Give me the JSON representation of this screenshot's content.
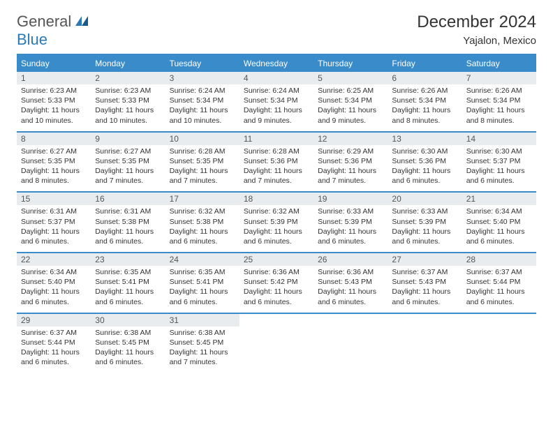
{
  "logo": {
    "general": "General",
    "blue": "Blue"
  },
  "title": "December 2024",
  "location": "Yajalon, Mexico",
  "colors": {
    "header_bg": "#3a8bc9",
    "daynum_bg": "#e9ecef",
    "text": "#333333",
    "logo_blue": "#2a7ab8"
  },
  "dow": [
    "Sunday",
    "Monday",
    "Tuesday",
    "Wednesday",
    "Thursday",
    "Friday",
    "Saturday"
  ],
  "labels": {
    "sunrise": "Sunrise: ",
    "sunset": "Sunset: ",
    "daylight": "Daylight: "
  },
  "weeks": [
    [
      {
        "n": "1",
        "sr": "6:23 AM",
        "ss": "5:33 PM",
        "dl": "11 hours and 10 minutes."
      },
      {
        "n": "2",
        "sr": "6:23 AM",
        "ss": "5:33 PM",
        "dl": "11 hours and 10 minutes."
      },
      {
        "n": "3",
        "sr": "6:24 AM",
        "ss": "5:34 PM",
        "dl": "11 hours and 10 minutes."
      },
      {
        "n": "4",
        "sr": "6:24 AM",
        "ss": "5:34 PM",
        "dl": "11 hours and 9 minutes."
      },
      {
        "n": "5",
        "sr": "6:25 AM",
        "ss": "5:34 PM",
        "dl": "11 hours and 9 minutes."
      },
      {
        "n": "6",
        "sr": "6:26 AM",
        "ss": "5:34 PM",
        "dl": "11 hours and 8 minutes."
      },
      {
        "n": "7",
        "sr": "6:26 AM",
        "ss": "5:34 PM",
        "dl": "11 hours and 8 minutes."
      }
    ],
    [
      {
        "n": "8",
        "sr": "6:27 AM",
        "ss": "5:35 PM",
        "dl": "11 hours and 8 minutes."
      },
      {
        "n": "9",
        "sr": "6:27 AM",
        "ss": "5:35 PM",
        "dl": "11 hours and 7 minutes."
      },
      {
        "n": "10",
        "sr": "6:28 AM",
        "ss": "5:35 PM",
        "dl": "11 hours and 7 minutes."
      },
      {
        "n": "11",
        "sr": "6:28 AM",
        "ss": "5:36 PM",
        "dl": "11 hours and 7 minutes."
      },
      {
        "n": "12",
        "sr": "6:29 AM",
        "ss": "5:36 PM",
        "dl": "11 hours and 7 minutes."
      },
      {
        "n": "13",
        "sr": "6:30 AM",
        "ss": "5:36 PM",
        "dl": "11 hours and 6 minutes."
      },
      {
        "n": "14",
        "sr": "6:30 AM",
        "ss": "5:37 PM",
        "dl": "11 hours and 6 minutes."
      }
    ],
    [
      {
        "n": "15",
        "sr": "6:31 AM",
        "ss": "5:37 PM",
        "dl": "11 hours and 6 minutes."
      },
      {
        "n": "16",
        "sr": "6:31 AM",
        "ss": "5:38 PM",
        "dl": "11 hours and 6 minutes."
      },
      {
        "n": "17",
        "sr": "6:32 AM",
        "ss": "5:38 PM",
        "dl": "11 hours and 6 minutes."
      },
      {
        "n": "18",
        "sr": "6:32 AM",
        "ss": "5:39 PM",
        "dl": "11 hours and 6 minutes."
      },
      {
        "n": "19",
        "sr": "6:33 AM",
        "ss": "5:39 PM",
        "dl": "11 hours and 6 minutes."
      },
      {
        "n": "20",
        "sr": "6:33 AM",
        "ss": "5:39 PM",
        "dl": "11 hours and 6 minutes."
      },
      {
        "n": "21",
        "sr": "6:34 AM",
        "ss": "5:40 PM",
        "dl": "11 hours and 6 minutes."
      }
    ],
    [
      {
        "n": "22",
        "sr": "6:34 AM",
        "ss": "5:40 PM",
        "dl": "11 hours and 6 minutes."
      },
      {
        "n": "23",
        "sr": "6:35 AM",
        "ss": "5:41 PM",
        "dl": "11 hours and 6 minutes."
      },
      {
        "n": "24",
        "sr": "6:35 AM",
        "ss": "5:41 PM",
        "dl": "11 hours and 6 minutes."
      },
      {
        "n": "25",
        "sr": "6:36 AM",
        "ss": "5:42 PM",
        "dl": "11 hours and 6 minutes."
      },
      {
        "n": "26",
        "sr": "6:36 AM",
        "ss": "5:43 PM",
        "dl": "11 hours and 6 minutes."
      },
      {
        "n": "27",
        "sr": "6:37 AM",
        "ss": "5:43 PM",
        "dl": "11 hours and 6 minutes."
      },
      {
        "n": "28",
        "sr": "6:37 AM",
        "ss": "5:44 PM",
        "dl": "11 hours and 6 minutes."
      }
    ],
    [
      {
        "n": "29",
        "sr": "6:37 AM",
        "ss": "5:44 PM",
        "dl": "11 hours and 6 minutes."
      },
      {
        "n": "30",
        "sr": "6:38 AM",
        "ss": "5:45 PM",
        "dl": "11 hours and 6 minutes."
      },
      {
        "n": "31",
        "sr": "6:38 AM",
        "ss": "5:45 PM",
        "dl": "11 hours and 7 minutes."
      },
      null,
      null,
      null,
      null
    ]
  ]
}
